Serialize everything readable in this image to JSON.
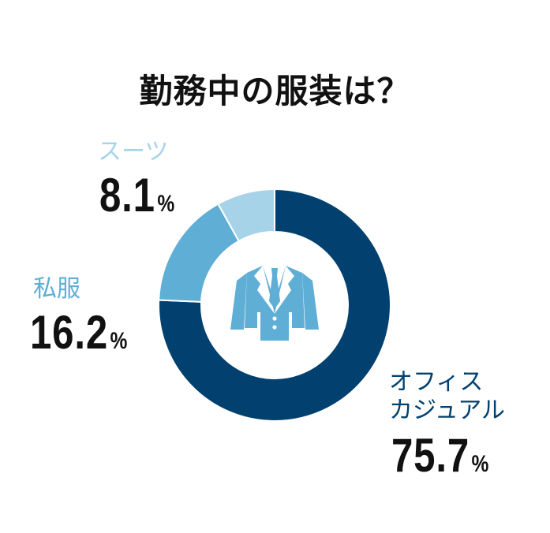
{
  "chart_data": {
    "type": "pie",
    "title": "勤務中の服装は？",
    "unit_symbol": "%",
    "center_icon": "suit-jacket-icon",
    "slices": [
      {
        "label": "オフィスカジュアル",
        "label_lines": [
          "オフィス",
          "カジュアル"
        ],
        "value": 75.7,
        "value_text": "75.7",
        "color": "#02416f",
        "label_color": "#02416f"
      },
      {
        "label": "私服",
        "label_lines": [
          "私服"
        ],
        "value": 16.2,
        "value_text": "16.2",
        "color": "#5eaed5",
        "label_color": "#5eaed5"
      },
      {
        "label": "スーツ",
        "label_lines": [
          "スーツ"
        ],
        "value": 8.1,
        "value_text": "8.1",
        "color": "#a7d3e8",
        "label_color": "#a7d3e8"
      }
    ]
  }
}
